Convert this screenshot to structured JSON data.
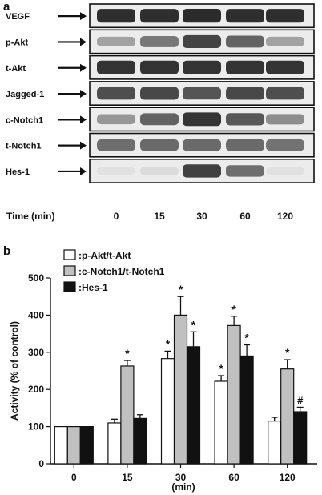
{
  "panel_a": {
    "letter": "a",
    "rows": [
      {
        "label": "VEGF",
        "intensity": [
          0.9,
          0.9,
          0.92,
          0.9,
          0.9
        ]
      },
      {
        "label": "p-Akt",
        "intensity": [
          0.35,
          0.55,
          0.8,
          0.65,
          0.35
        ]
      },
      {
        "label": "t-Akt",
        "intensity": [
          0.88,
          0.88,
          0.88,
          0.88,
          0.88
        ]
      },
      {
        "label": "Jagged-1",
        "intensity": [
          0.75,
          0.78,
          0.72,
          0.78,
          0.75
        ]
      },
      {
        "label": "c-Notch1",
        "intensity": [
          0.4,
          0.65,
          0.88,
          0.7,
          0.45
        ]
      },
      {
        "label": "t-Notch1",
        "intensity": [
          0.6,
          0.62,
          0.62,
          0.62,
          0.58
        ]
      },
      {
        "label": "Hes-1",
        "intensity": [
          0.04,
          0.08,
          0.82,
          0.6,
          0.06
        ]
      }
    ],
    "time_label": "Time (min)",
    "time_points": [
      "0",
      "15",
      "30",
      "60",
      "120"
    ],
    "band_color": "#1a1a1a"
  },
  "chart_data": {
    "type": "bar",
    "letter": "b",
    "categories": [
      "0",
      "15",
      "30",
      "60",
      "120"
    ],
    "xlabel": "(min)",
    "ylabel": "Activity (% of control)",
    "ylim": [
      0,
      500
    ],
    "yticks": [
      0,
      100,
      200,
      300,
      400,
      500
    ],
    "legend_position": "top",
    "series": [
      {
        "name": ":p-Akt/t-Akt",
        "color": "#ffffff",
        "values": [
          100,
          110,
          283,
          222,
          115
        ],
        "errors": [
          0,
          10,
          20,
          15,
          10
        ],
        "marks": [
          "",
          "",
          "*",
          "*",
          ""
        ]
      },
      {
        "name": ":c-Notch1/t-Notch1",
        "color": "#c0c0c0",
        "values": [
          100,
          263,
          400,
          372,
          255
        ],
        "errors": [
          0,
          15,
          50,
          25,
          25
        ],
        "marks": [
          "",
          "*",
          "*",
          "*",
          "*"
        ]
      },
      {
        "name": ":Hes-1",
        "color": "#111111",
        "values": [
          100,
          122,
          315,
          290,
          140
        ],
        "errors": [
          0,
          10,
          40,
          30,
          12
        ],
        "marks": [
          "",
          "",
          "*",
          "*",
          "#"
        ]
      }
    ]
  }
}
